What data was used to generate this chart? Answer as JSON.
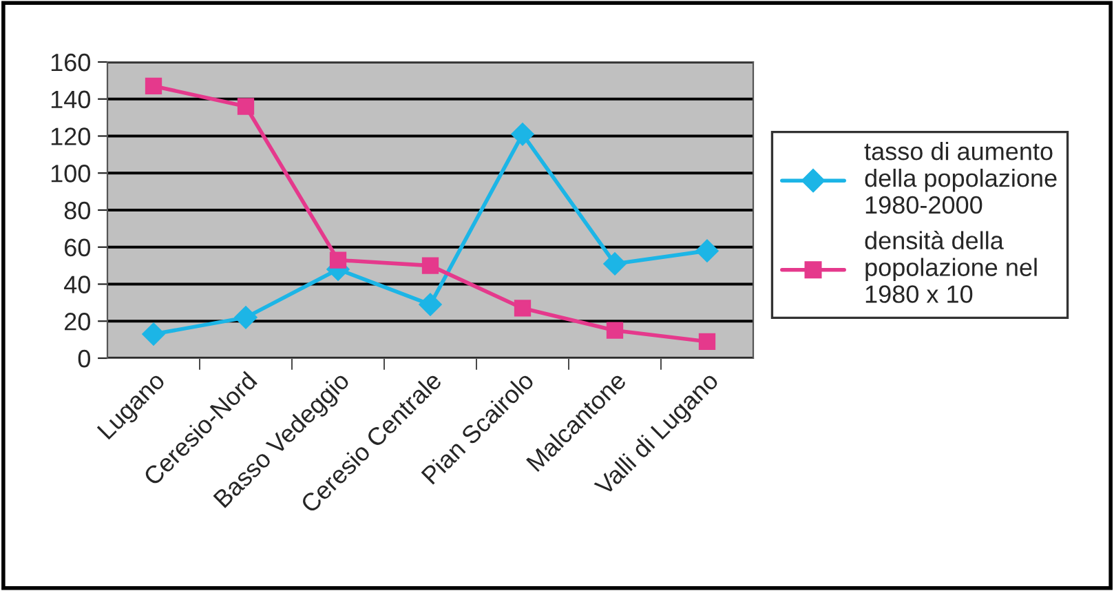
{
  "chart_data": {
    "type": "line",
    "categories": [
      "Lugano",
      "Ceresio-Nord",
      "Basso Vedeggio",
      "Ceresio Centrale",
      "Pian Scairolo",
      "Malcantone",
      "Valli di Lugano"
    ],
    "series": [
      {
        "name": "tasso di aumento\ndella popolazione\n1980-2000",
        "color": "#1cb5e6",
        "marker": "diamond",
        "values": [
          13,
          22,
          48,
          29,
          121,
          51,
          58
        ]
      },
      {
        "name": "densità della\npopolazione nel\n1980 x 10",
        "color": "#e5398c",
        "marker": "square",
        "values": [
          147,
          136,
          53,
          50,
          27,
          15,
          9
        ]
      }
    ],
    "ylim": [
      0,
      160
    ],
    "yticks": [
      0,
      20,
      40,
      60,
      80,
      100,
      120,
      140,
      160
    ],
    "grid": "y",
    "legend": "right"
  }
}
